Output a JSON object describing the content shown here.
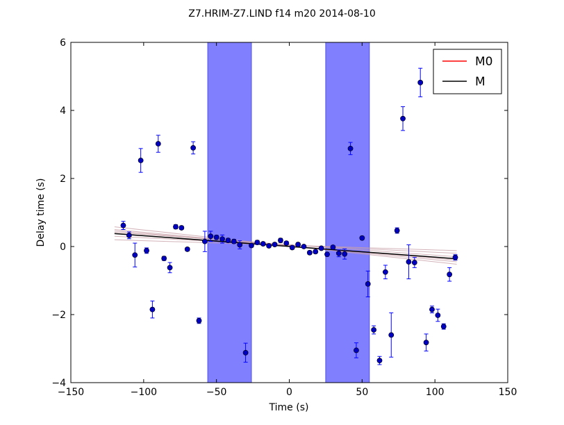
{
  "chart_data": {
    "type": "scatter",
    "title": "Z7.HRIM-Z7.LIND f14 m20 2014-08-10",
    "xlabel": "Time (s)",
    "ylabel": "Delay time (s)",
    "xlim": [
      -150,
      150
    ],
    "ylim": [
      -4,
      6
    ],
    "xticks": [
      -150,
      -100,
      -50,
      0,
      50,
      100,
      150
    ],
    "yticks": [
      -4,
      -2,
      0,
      2,
      4,
      6
    ],
    "xtick_labels": [
      "−150",
      "−100",
      "−50",
      "0",
      "50",
      "100",
      "150"
    ],
    "ytick_labels": [
      "−4",
      "−2",
      "0",
      "2",
      "4",
      "6"
    ],
    "grid": false,
    "legend_position": "top-right",
    "colors": {
      "points": "#0000bf",
      "errorbars": "#0000ff",
      "bands": "#8080ff",
      "band_edge": "#5050e0",
      "M0": "#ff0000",
      "M": "#000000",
      "ensemble": "#c8a0a8"
    },
    "shaded_bands": [
      [
        -56,
        -26
      ],
      [
        25,
        55
      ]
    ],
    "legend": [
      {
        "label": "M0",
        "color": "#ff0000"
      },
      {
        "label": "M",
        "color": "#000000"
      }
    ],
    "lines": [
      {
        "name": "M0",
        "x": [
          -120,
          115
        ],
        "y": [
          0.38,
          -0.36
        ],
        "color": "#ff0000"
      },
      {
        "name": "M",
        "x": [
          -120,
          115
        ],
        "y": [
          0.38,
          -0.36
        ],
        "color": "#000000"
      }
    ],
    "ensemble_lines": [
      {
        "x": [
          -120,
          115
        ],
        "y": [
          0.58,
          -0.52
        ]
      },
      {
        "x": [
          -120,
          115
        ],
        "y": [
          0.5,
          -0.45
        ]
      },
      {
        "x": [
          -120,
          115
        ],
        "y": [
          0.42,
          -0.3
        ]
      },
      {
        "x": [
          -120,
          115
        ],
        "y": [
          0.3,
          -0.2
        ]
      },
      {
        "x": [
          -120,
          115
        ],
        "y": [
          0.2,
          -0.12
        ]
      },
      {
        "x": [
          -120,
          115
        ],
        "y": [
          0.46,
          -0.4
        ]
      }
    ],
    "points": [
      {
        "x": -114,
        "y": 0.62,
        "err": 0.12
      },
      {
        "x": -110,
        "y": 0.33,
        "err": 0.1
      },
      {
        "x": -106,
        "y": -0.25,
        "err": 0.35
      },
      {
        "x": -102,
        "y": 2.53,
        "err": 0.35
      },
      {
        "x": -98,
        "y": -0.12,
        "err": 0.08
      },
      {
        "x": -94,
        "y": -1.85,
        "err": 0.25
      },
      {
        "x": -90,
        "y": 3.02,
        "err": 0.25
      },
      {
        "x": -86,
        "y": -0.35,
        "err": 0.06
      },
      {
        "x": -82,
        "y": -0.62,
        "err": 0.15
      },
      {
        "x": -78,
        "y": 0.58,
        "err": 0.06
      },
      {
        "x": -74,
        "y": 0.55,
        "err": 0.05
      },
      {
        "x": -70,
        "y": -0.08,
        "err": 0.05
      },
      {
        "x": -66,
        "y": 2.9,
        "err": 0.18
      },
      {
        "x": -62,
        "y": -2.18,
        "err": 0.08
      },
      {
        "x": -58,
        "y": 0.15,
        "err": 0.3
      },
      {
        "x": -54,
        "y": 0.3,
        "err": 0.15
      },
      {
        "x": -50,
        "y": 0.27,
        "err": 0.06
      },
      {
        "x": -46,
        "y": 0.22,
        "err": 0.12
      },
      {
        "x": -42,
        "y": 0.18,
        "err": 0.06
      },
      {
        "x": -38,
        "y": 0.15,
        "err": 0.06
      },
      {
        "x": -34,
        "y": 0.05,
        "err": 0.12
      },
      {
        "x": -30,
        "y": -3.12,
        "err": 0.28
      },
      {
        "x": -26,
        "y": 0.03,
        "err": 0.05
      },
      {
        "x": -22,
        "y": 0.12,
        "err": 0.06
      },
      {
        "x": -18,
        "y": 0.08,
        "err": 0.05
      },
      {
        "x": -14,
        "y": 0.02,
        "err": 0.04
      },
      {
        "x": -10,
        "y": 0.06,
        "err": 0.05
      },
      {
        "x": -6,
        "y": 0.18,
        "err": 0.06
      },
      {
        "x": -2,
        "y": 0.1,
        "err": 0.05
      },
      {
        "x": 2,
        "y": -0.03,
        "err": 0.05
      },
      {
        "x": 6,
        "y": 0.06,
        "err": 0.05
      },
      {
        "x": 10,
        "y": 0.0,
        "err": 0.04
      },
      {
        "x": 14,
        "y": -0.18,
        "err": 0.05
      },
      {
        "x": 18,
        "y": -0.15,
        "err": 0.05
      },
      {
        "x": 22,
        "y": -0.05,
        "err": 0.04
      },
      {
        "x": 26,
        "y": -0.23,
        "err": 0.05
      },
      {
        "x": 30,
        "y": -0.02,
        "err": 0.05
      },
      {
        "x": 34,
        "y": -0.2,
        "err": 0.1
      },
      {
        "x": 38,
        "y": -0.22,
        "err": 0.15
      },
      {
        "x": 42,
        "y": 2.88,
        "err": 0.18
      },
      {
        "x": 46,
        "y": -3.05,
        "err": 0.22
      },
      {
        "x": 50,
        "y": 0.25,
        "err": 0.05
      },
      {
        "x": 54,
        "y": -1.1,
        "err": 0.38
      },
      {
        "x": 58,
        "y": -2.45,
        "err": 0.12
      },
      {
        "x": 62,
        "y": -3.35,
        "err": 0.12
      },
      {
        "x": 66,
        "y": -0.75,
        "err": 0.2
      },
      {
        "x": 70,
        "y": -2.6,
        "err": 0.65
      },
      {
        "x": 74,
        "y": 0.47,
        "err": 0.08
      },
      {
        "x": 78,
        "y": 3.76,
        "err": 0.35
      },
      {
        "x": 82,
        "y": -0.45,
        "err": 0.5
      },
      {
        "x": 86,
        "y": -0.47,
        "err": 0.15
      },
      {
        "x": 90,
        "y": 4.82,
        "err": 0.42
      },
      {
        "x": 94,
        "y": -2.82,
        "err": 0.25
      },
      {
        "x": 98,
        "y": -1.85,
        "err": 0.1
      },
      {
        "x": 102,
        "y": -2.02,
        "err": 0.18
      },
      {
        "x": 106,
        "y": -2.35,
        "err": 0.08
      },
      {
        "x": 110,
        "y": -0.82,
        "err": 0.2
      },
      {
        "x": 114,
        "y": -0.32,
        "err": 0.08
      }
    ]
  }
}
